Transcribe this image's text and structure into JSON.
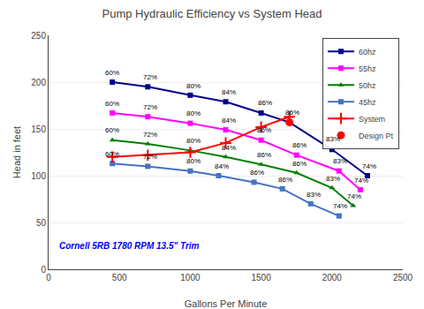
{
  "chart_data": {
    "type": "line",
    "title": "Pump Hydraulic Efficiency vs System Head",
    "x_label": "Gallons Per Minute",
    "y_label": "Head in feet",
    "xlim": [
      0,
      2500
    ],
    "ylim": [
      0,
      250
    ],
    "xticks": [
      0,
      500,
      1000,
      1500,
      2000,
      2500
    ],
    "yticks": [
      0,
      50,
      100,
      150,
      200,
      250
    ],
    "grid": "y",
    "legend": "upper right",
    "series": [
      {
        "name": "60hz",
        "color": "#00008B",
        "marker": "square",
        "x": [
          450,
          700,
          1000,
          1250,
          1500,
          1700,
          2000,
          2250
        ],
        "values": [
          200,
          195,
          186,
          179,
          167,
          157,
          128,
          100
        ],
        "annotations": [
          {
            "x": 450,
            "y": 204,
            "text": "60%"
          },
          {
            "x": 720,
            "y": 199,
            "text": "72%"
          },
          {
            "x": 1020,
            "y": 190,
            "text": "80%"
          },
          {
            "x": 1270,
            "y": 183,
            "text": "84%"
          },
          {
            "x": 1530,
            "y": 172,
            "text": "86%"
          },
          {
            "x": 1720,
            "y": 161,
            "text": "86%"
          },
          {
            "x": 2010,
            "y": 133,
            "text": "83%"
          },
          {
            "x": 2260,
            "y": 104,
            "text": "74%"
          }
        ]
      },
      {
        "name": "55hz",
        "color": "#FF00FF",
        "marker": "square",
        "x": [
          450,
          700,
          1000,
          1250,
          1500,
          1750,
          2050,
          2200
        ],
        "values": [
          167,
          163,
          156,
          149,
          138,
          122,
          105,
          85
        ],
        "annotations": [
          {
            "x": 450,
            "y": 171,
            "text": "60%"
          },
          {
            "x": 720,
            "y": 167,
            "text": "72%"
          },
          {
            "x": 1020,
            "y": 160,
            "text": "80%"
          },
          {
            "x": 1270,
            "y": 153,
            "text": "84%"
          },
          {
            "x": 1520,
            "y": 142,
            "text": "86%"
          },
          {
            "x": 1770,
            "y": 126,
            "text": "86%"
          },
          {
            "x": 2060,
            "y": 109,
            "text": "83%"
          },
          {
            "x": 2210,
            "y": 89,
            "text": "74%"
          }
        ]
      },
      {
        "name": "50hz",
        "color": "#008000",
        "marker": "triangle",
        "x": [
          450,
          700,
          1000,
          1250,
          1500,
          1750,
          2000,
          2150
        ],
        "values": [
          138,
          134,
          127,
          120,
          112,
          103,
          87,
          68
        ],
        "annotations": [
          {
            "x": 450,
            "y": 142,
            "text": "60%"
          },
          {
            "x": 720,
            "y": 138,
            "text": "72%"
          },
          {
            "x": 1020,
            "y": 131,
            "text": "80%"
          },
          {
            "x": 1270,
            "y": 124,
            "text": "84%"
          },
          {
            "x": 1520,
            "y": 116,
            "text": "86%"
          },
          {
            "x": 1770,
            "y": 107,
            "text": "86%"
          },
          {
            "x": 2010,
            "y": 91,
            "text": "83%"
          },
          {
            "x": 2160,
            "y": 72,
            "text": "74%"
          }
        ]
      },
      {
        "name": "45hz",
        "color": "#4472C4",
        "marker": "square",
        "x": [
          450,
          700,
          1000,
          1200,
          1450,
          1650,
          1850,
          2050
        ],
        "values": [
          113,
          110,
          105,
          100,
          93,
          86,
          70,
          57
        ],
        "annotations": [
          {
            "x": 450,
            "y": 117,
            "text": "60%"
          },
          {
            "x": 720,
            "y": 114,
            "text": "72%"
          },
          {
            "x": 1020,
            "y": 109,
            "text": "80%"
          },
          {
            "x": 1220,
            "y": 104,
            "text": "84%"
          },
          {
            "x": 1470,
            "y": 97,
            "text": "86%"
          },
          {
            "x": 1670,
            "y": 90,
            "text": "86%"
          },
          {
            "x": 1870,
            "y": 74,
            "text": "83%"
          },
          {
            "x": 2060,
            "y": 61,
            "text": "74%"
          }
        ]
      },
      {
        "name": "System",
        "color": "#FF0000",
        "marker": "plus",
        "x": [
          450,
          700,
          1000,
          1250,
          1500,
          1700
        ],
        "values": [
          120,
          122,
          125,
          135,
          152,
          163
        ]
      },
      {
        "name": "Design Pt",
        "type": "scatter",
        "color": "#FF0000",
        "marker": "circle",
        "x": [
          1700
        ],
        "values": [
          157
        ]
      }
    ],
    "annotations": [
      {
        "x": 60,
        "y": 18,
        "text": "Cornell 5RB 1780 RPM 13.5\" Trim",
        "color": "blue"
      }
    ]
  }
}
